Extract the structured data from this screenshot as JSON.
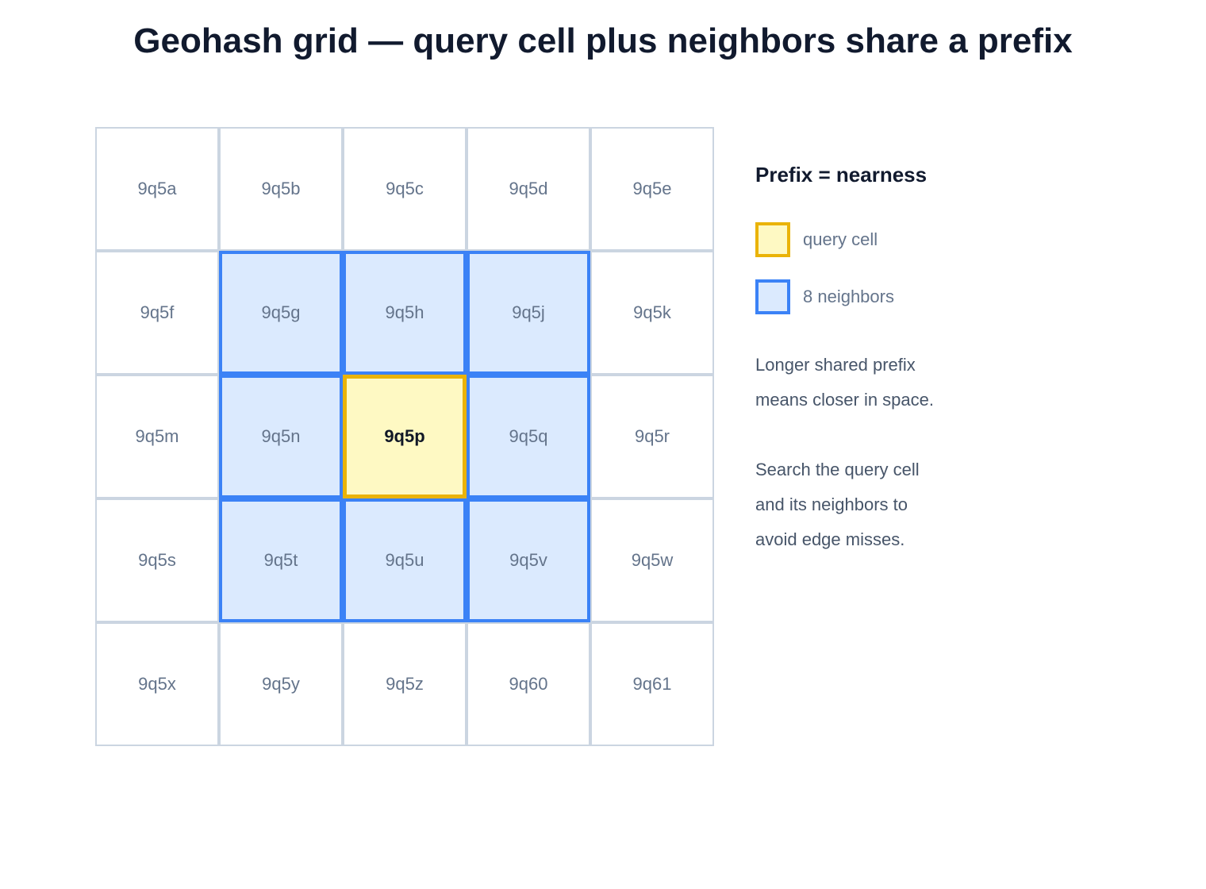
{
  "title": "Geohash grid — query cell plus neighbors share a prefix",
  "grid": {
    "rows": [
      [
        "9q5a",
        "9q5b",
        "9q5c",
        "9q5d",
        "9q5e"
      ],
      [
        "9q5f",
        "9q5g",
        "9q5h",
        "9q5j",
        "9q5k"
      ],
      [
        "9q5m",
        "9q5n",
        "9q5p",
        "9q5q",
        "9q5r"
      ],
      [
        "9q5s",
        "9q5t",
        "9q5u",
        "9q5v",
        "9q5w"
      ],
      [
        "9q5x",
        "9q5y",
        "9q5z",
        "9q60",
        "9q61"
      ]
    ],
    "query_cell": "9q5p",
    "neighbor_cells": [
      "9q5g",
      "9q5h",
      "9q5j",
      "9q5n",
      "9q5q",
      "9q5t",
      "9q5u",
      "9q5v"
    ]
  },
  "legend": {
    "title": "Prefix = nearness",
    "query_label": "query cell",
    "neighbor_label": "8 neighbors",
    "note_1": [
      "Longer shared prefix",
      "means closer in space."
    ],
    "note_2": [
      "Search the query cell",
      "and its neighbors to",
      "avoid edge misses."
    ]
  },
  "colors": {
    "query_fill": "#fef9c3",
    "query_border": "#eab308",
    "neighbor_fill": "#dbeafe",
    "neighbor_border": "#3b82f6",
    "grid_line": "#cbd5e1"
  }
}
